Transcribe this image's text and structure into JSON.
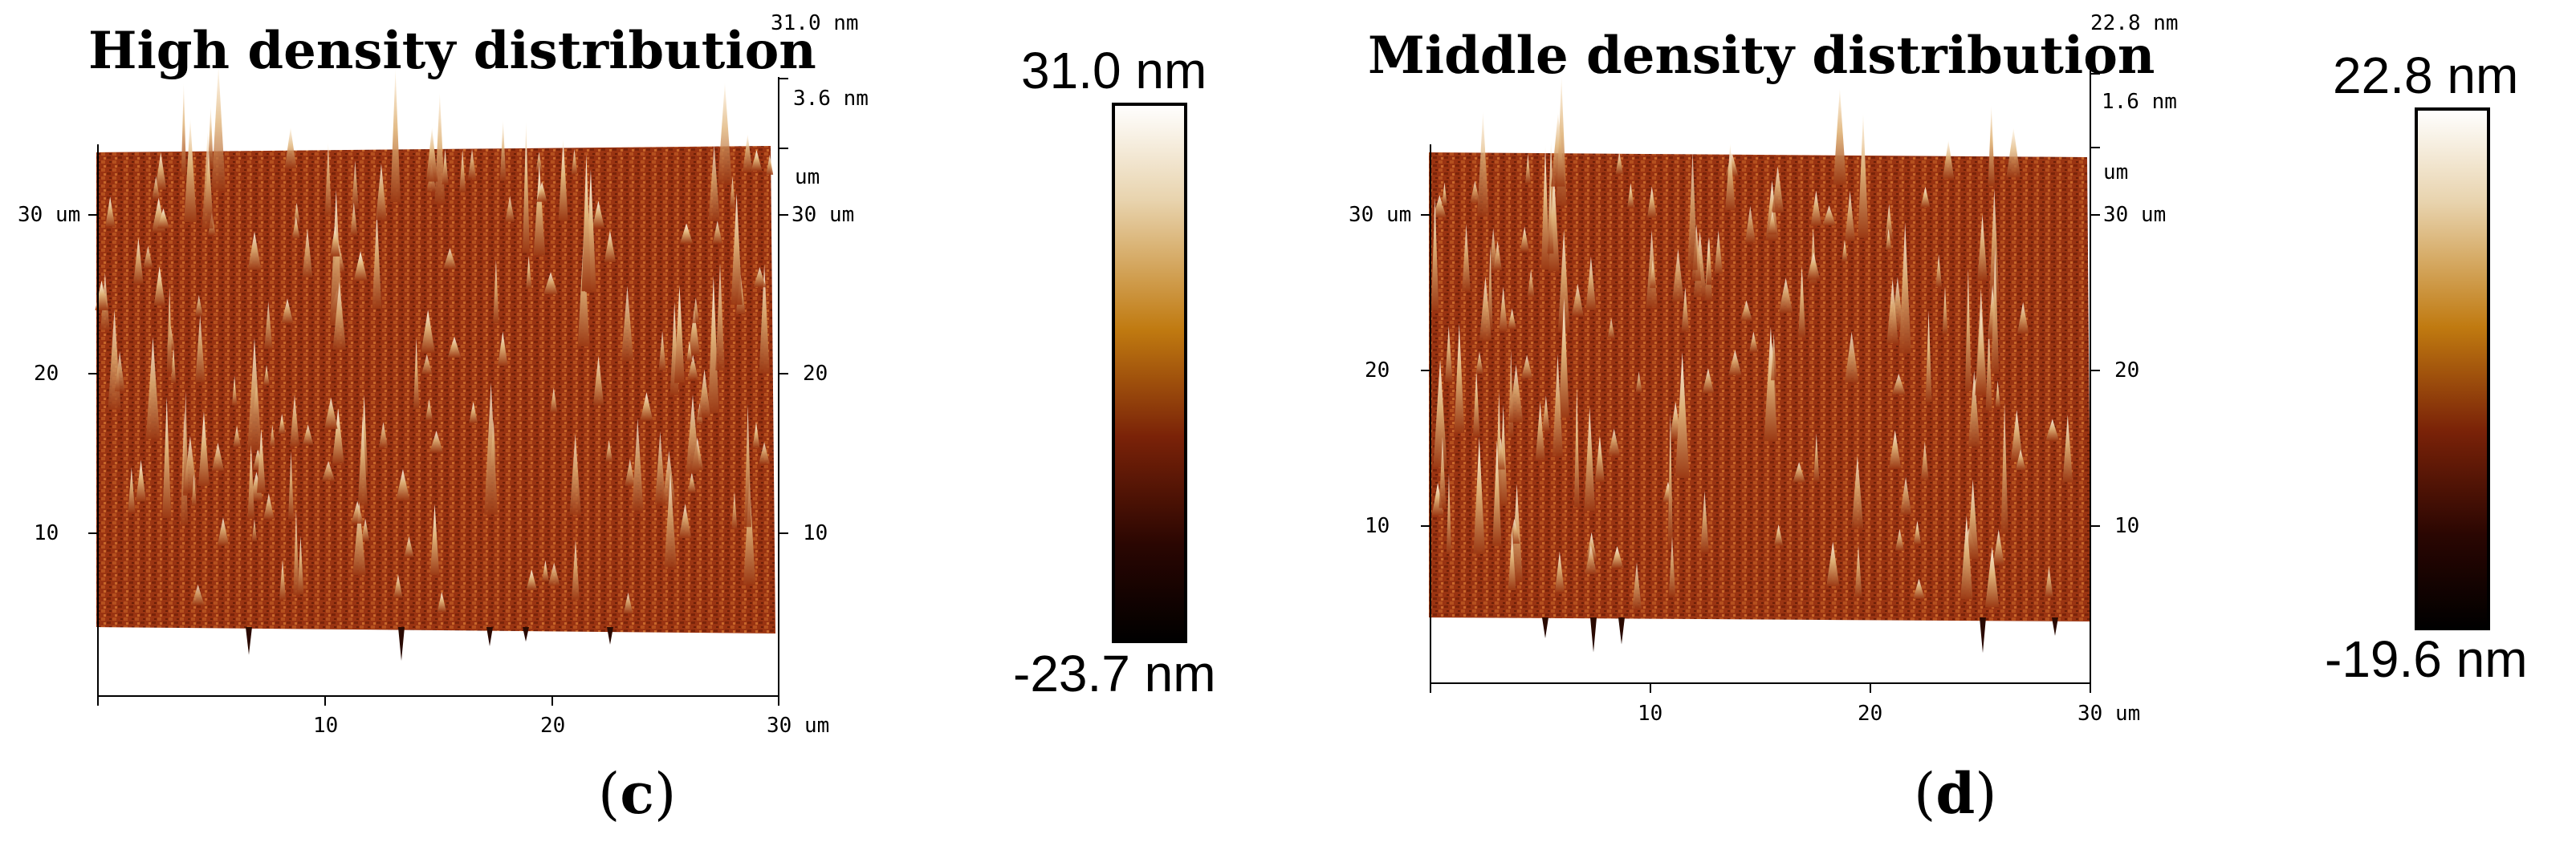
{
  "panels": [
    {
      "id": "c",
      "title": "High density distribution",
      "z_max": "31.0 nm",
      "z_tick": "3.6 nm",
      "z_unit": "um",
      "y_left": [
        "30 um",
        "20",
        "10"
      ],
      "y_right": [
        "30 um",
        "20",
        "10"
      ],
      "x_ticks": [
        "10",
        "20",
        "30 um"
      ],
      "colorbar": {
        "max_label": "31.0 nm",
        "min_label": "-23.7 nm"
      },
      "label_paren_open": "(",
      "label_letter": "c",
      "label_paren_close": ")"
    },
    {
      "id": "d",
      "title": "Middle density distribution",
      "z_max": "22.8 nm",
      "z_tick": "1.6 nm",
      "z_unit": "um",
      "y_left": [
        "30 um",
        "20",
        "10"
      ],
      "y_right": [
        "30 um",
        "20",
        "10"
      ],
      "x_ticks": [
        "10",
        "20",
        "30 um"
      ],
      "colorbar": {
        "max_label": "22.8 nm",
        "min_label": "-19.6 nm"
      },
      "label_paren_open": "(",
      "label_letter": "d",
      "label_paren_close": ")"
    }
  ],
  "colors": {
    "surface_dark": "#5a1e08",
    "surface_mid": "#9c3a14",
    "surface_light": "#c46a2c",
    "peak_high": "#fff6e8",
    "colorbar_top": "#ffffff",
    "colorbar_mid": "#c07a10",
    "colorbar_low": "#5a1206",
    "colorbar_bottom": "#000000"
  }
}
